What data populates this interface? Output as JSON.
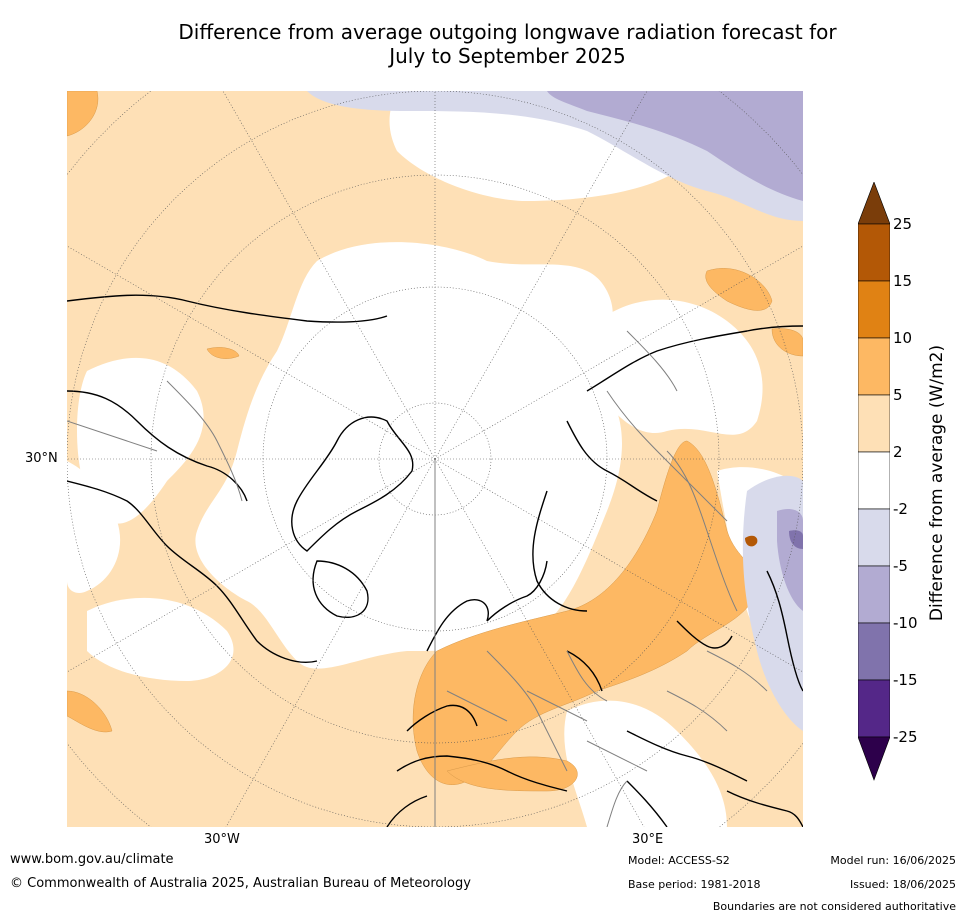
{
  "title_line1": "Difference from average outgoing longwave radiation forecast for",
  "title_line2": "July to September 2025",
  "map": {
    "projection": "north-polar-stereographic",
    "lat_label": "30°N",
    "lon_labels": [
      "30°W",
      "30°E"
    ]
  },
  "colorbar": {
    "title": "Difference from average (W/m2)",
    "ticks": [
      "25",
      "15",
      "10",
      "5",
      "2",
      "-2",
      "-5",
      "-10",
      "-15",
      "-25"
    ],
    "colors": {
      "gt25": "#7a3d0a",
      "15_25": "#b35806",
      "10_15": "#e08214",
      "5_10": "#fdb863",
      "2_5": "#fee0b6",
      "neutral": "#ffffff",
      "m5_m2": "#d8daeb",
      "m10_m5": "#b2abd2",
      "m15_m10": "#8073ac",
      "m25_m15": "#542788",
      "lt_m25": "#2d004b"
    }
  },
  "footer": {
    "website": "www.bom.gov.au/climate",
    "copyright": "© Commonwealth of Australia 2025, Australian Bureau of Meteorology",
    "model": "Model: ACCESS-S2",
    "base_period": "Base period: 1981-2018",
    "model_run": "Model run: 16/06/2025",
    "issued": "Issued: 18/06/2025",
    "disclaimer": "Boundaries are not considered authoritative"
  }
}
